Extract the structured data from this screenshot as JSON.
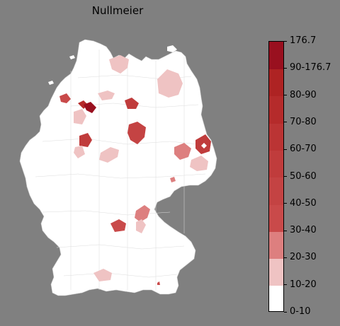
{
  "title": "Nullmeier",
  "legend": {
    "bins": [
      {
        "label": "0-10",
        "color": "#ffffff"
      },
      {
        "label": "10-20",
        "color": "#efc3c3"
      },
      {
        "label": "20-30",
        "color": "#dd7f7f"
      },
      {
        "label": "30-40",
        "color": "#c94a4a"
      },
      {
        "label": "40-50",
        "color": "#c44343"
      },
      {
        "label": "50-60",
        "color": "#c03c3c"
      },
      {
        "label": "60-70",
        "color": "#bb3434"
      },
      {
        "label": "70-80",
        "color": "#b52b2b"
      },
      {
        "label": "80-90",
        "color": "#ae2323"
      },
      {
        "label": "90-176.7",
        "color": "#a31a26"
      }
    ],
    "max_label": "176.7",
    "top_color": "#99101f"
  }
}
